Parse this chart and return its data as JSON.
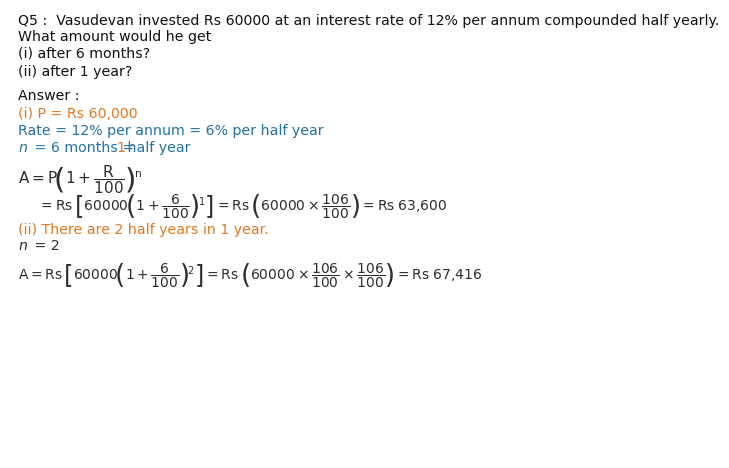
{
  "bg_color": "#ffffff",
  "black": "#2d2d2d",
  "orange": "#e07820",
  "blue": "#2471a3",
  "dark_blue": "#1f618d",
  "q5_line1": "Q5 :  Vasudevan invested Rs 60000 at an interest rate of 12% per annum compounded half yearly.",
  "q5_line2": "What amount would he get",
  "q5_line3": "(i) after 6 months?",
  "q5_line4": "(ii) after 1 year?",
  "ans_label": "Answer :",
  "ans_i_p": "(i) P = Rs 60,000",
  "ans_rate": "Rate = 12% per annum = 6% per half year",
  "ans_ii_stmt": "(ii) There are 2 half years in 1 year.",
  "ans_n2": "n = 2"
}
